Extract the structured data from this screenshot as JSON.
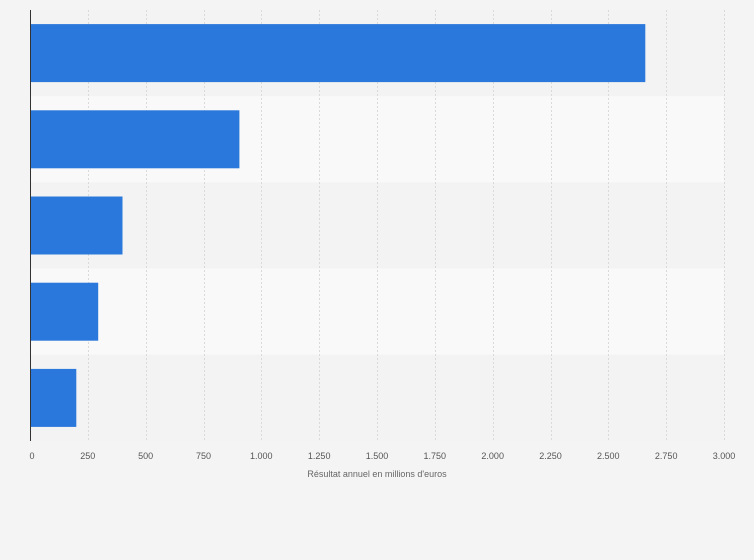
{
  "chart_data": {
    "type": "bar",
    "orientation": "horizontal",
    "categories": [
      "",
      "",
      "",
      "",
      ""
    ],
    "values": [
      2660,
      905,
      400,
      295,
      200
    ],
    "title": "",
    "xlabel": "Résultat annuel en millions d'euros",
    "ylabel": "",
    "xlim": [
      0,
      3000
    ],
    "xticks": [
      0,
      250,
      500,
      750,
      1000,
      1250,
      1500,
      1750,
      2000,
      2250,
      2500,
      2750,
      3000
    ],
    "xtick_labels": [
      "0",
      "250",
      "500",
      "750",
      "1.000",
      "1.250",
      "1.500",
      "1.750",
      "2.000",
      "2.250",
      "2.500",
      "2.750",
      "3.000"
    ],
    "grid": true,
    "legend": "none"
  },
  "colors": {
    "bar": "#2a78db",
    "band_light": "#f9f9f9",
    "band_dark": "#f3f3f3",
    "grid": "#d9d9d9",
    "axis": "#333333",
    "background": "#f4f4f4"
  }
}
